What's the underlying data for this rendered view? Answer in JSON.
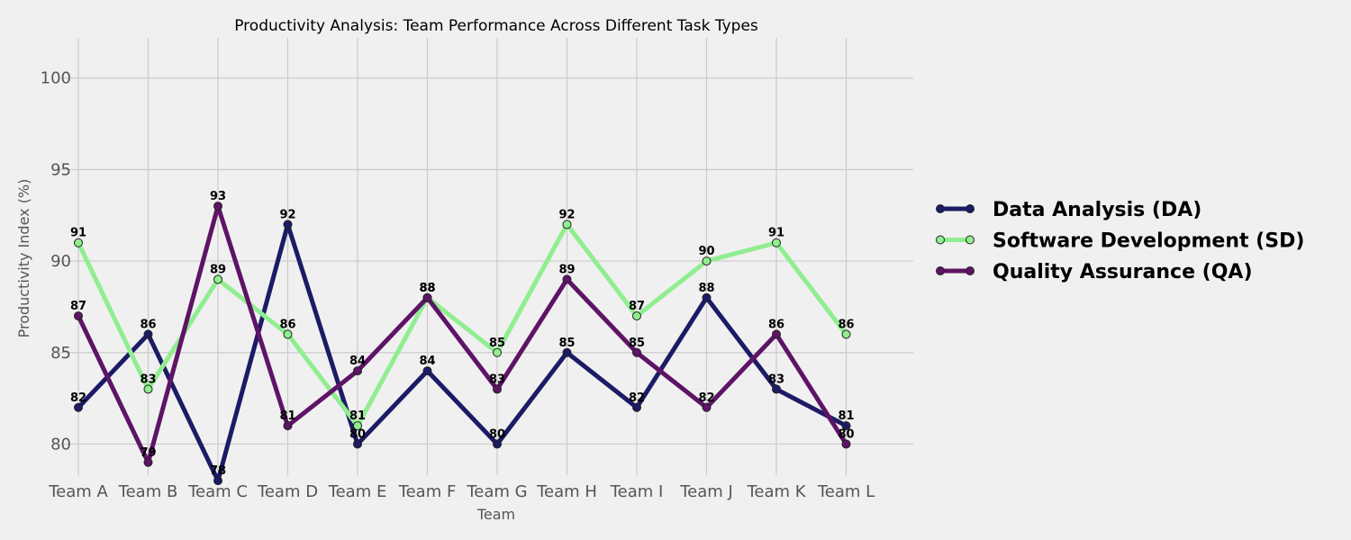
{
  "chart_data": {
    "type": "line",
    "title": "Productivity Analysis: Team Performance Across Different Task Types",
    "xlabel": "Team",
    "ylabel": "Productivity Index (%)",
    "categories": [
      "Team A",
      "Team B",
      "Team C",
      "Team D",
      "Team E",
      "Team F",
      "Team G",
      "Team H",
      "Team I",
      "Team J",
      "Team K",
      "Team L"
    ],
    "ylim": [
      78.3,
      102.2
    ],
    "yticks": [
      80,
      85,
      90,
      95,
      100
    ],
    "grid": true,
    "legend_position": "right",
    "series": [
      {
        "name": "Data Analysis (DA)",
        "color": "#1b1b66",
        "values": [
          82,
          86,
          78,
          92,
          80,
          84,
          80,
          85,
          82,
          88,
          83,
          81
        ]
      },
      {
        "name": "Software Development (SD)",
        "color": "#90ee90",
        "values": [
          91,
          83,
          89,
          86,
          81,
          88,
          85,
          92,
          87,
          90,
          91,
          86
        ]
      },
      {
        "name": "Quality Assurance (QA)",
        "color": "#5e1466",
        "values": [
          87,
          79,
          93,
          81,
          84,
          88,
          83,
          89,
          85,
          82,
          86,
          80
        ]
      }
    ]
  }
}
